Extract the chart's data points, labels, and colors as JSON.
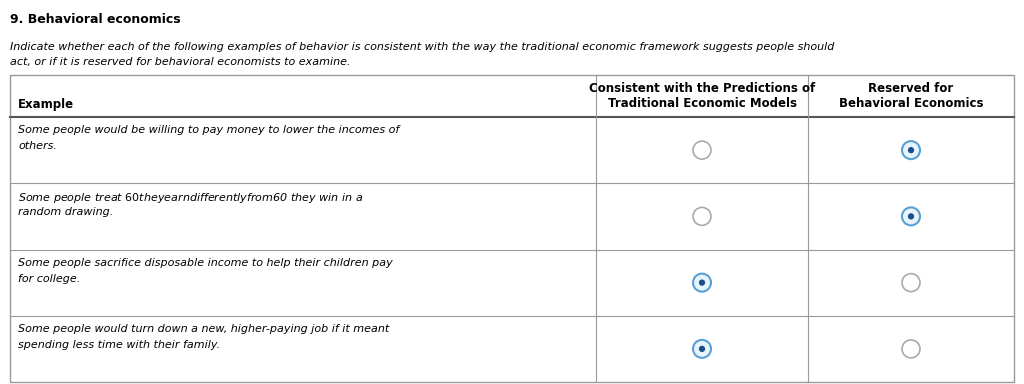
{
  "title": "9. Behavioral economics",
  "subtitle_line1": "Indicate whether each of the following examples of behavior is consistent with the way the traditional economic framework suggests people should",
  "subtitle_line2": "act, or if it is reserved for behavioral economists to examine.",
  "col1_header": "Example",
  "col2_header": "Consistent with the Predictions of\nTraditional Economic Models",
  "col3_header": "Reserved for\nBehavioral Economics",
  "rows": [
    {
      "example_line1": "Some people would be willing to pay money to lower the incomes of",
      "example_line2": "others.",
      "traditional": false,
      "behavioral": true
    },
    {
      "example_line1": "Some people treat $60 they earn differently from $60 they win in a",
      "example_line2": "random drawing.",
      "traditional": false,
      "behavioral": true
    },
    {
      "example_line1": "Some people sacrifice disposable income to help their children pay",
      "example_line2": "for college.",
      "traditional": true,
      "behavioral": false
    },
    {
      "example_line1": "Some people would turn down a new, higher-paying job if it meant",
      "example_line2": "spending less time with their family.",
      "traditional": true,
      "behavioral": false
    }
  ],
  "bg_color": "#ffffff",
  "table_border_color": "#999999",
  "header_border_color": "#555555",
  "text_color": "#000000",
  "link_color": "#1a4f8a",
  "radio_empty_stroke": "#aaaaaa",
  "radio_filled_stroke": "#5a9fd4",
  "radio_filled_face": "#e8f4fc",
  "radio_dot_color": "#1a4f8a"
}
